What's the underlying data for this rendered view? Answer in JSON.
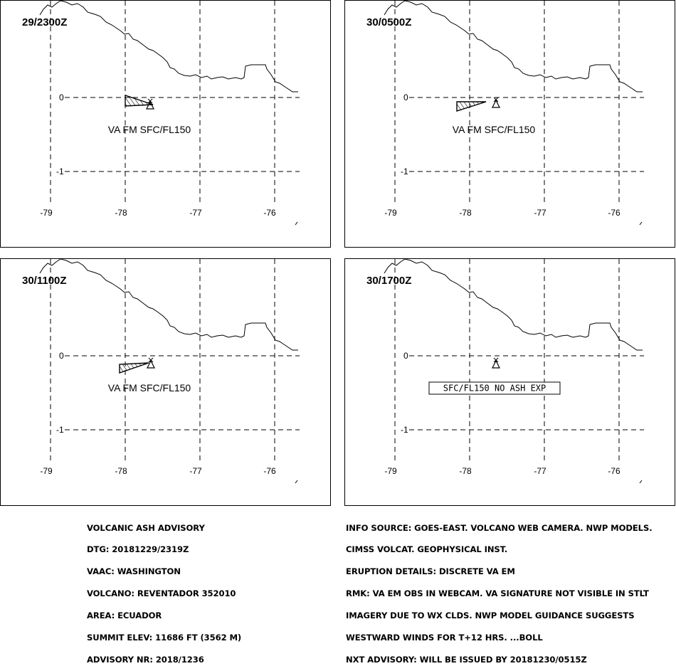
{
  "panels": [
    {
      "time": "29/2300Z",
      "label": "VA FM SFC/FL150",
      "boxed": false,
      "ash": true
    },
    {
      "time": "30/0500Z",
      "label": "VA FM SFC/FL150",
      "boxed": false,
      "ash": true
    },
    {
      "time": "30/1100Z",
      "label": "VA FM SFC/FL150",
      "boxed": false,
      "ash": true
    },
    {
      "time": "30/1700Z",
      "label": "SFC/FL150 NO ASH EXP",
      "boxed": true,
      "ash": false
    }
  ],
  "axes": {
    "lon_labels": [
      "-79",
      "-78",
      "-77",
      "-76"
    ],
    "lat_labels": [
      "0",
      "-1"
    ]
  },
  "advisory_left": [
    "VOLCANIC ASH ADVISORY",
    "DTG: 20181229/2319Z",
    "VAAC: WASHINGTON",
    "VOLCANO: REVENTADOR 352010",
    "AREA: ECUADOR",
    "SUMMIT ELEV: 11686 FT (3562 M)",
    "ADVISORY NR: 2018/1236"
  ],
  "advisory_right": [
    "INFO SOURCE: GOES-EAST. VOLCANO WEB CAMERA. NWP MODELS.",
    "CIMSS VOLCAT. GEOPHYSICAL INST.",
    "ERUPTION DETAILS: DISCRETE VA EM",
    "RMK: VA EM OBS IN WEBCAM. VA SIGNATURE NOT VISIBLE IN STLT",
    "IMAGERY DUE TO WX CLDS. NWP MODEL GUIDANCE SUGGESTS",
    "WESTWARD WINDS FOR T+12 HRS. ...BOLL",
    "NXT ADVISORY: WILL BE ISSUED BY 20181230/0515Z"
  ]
}
